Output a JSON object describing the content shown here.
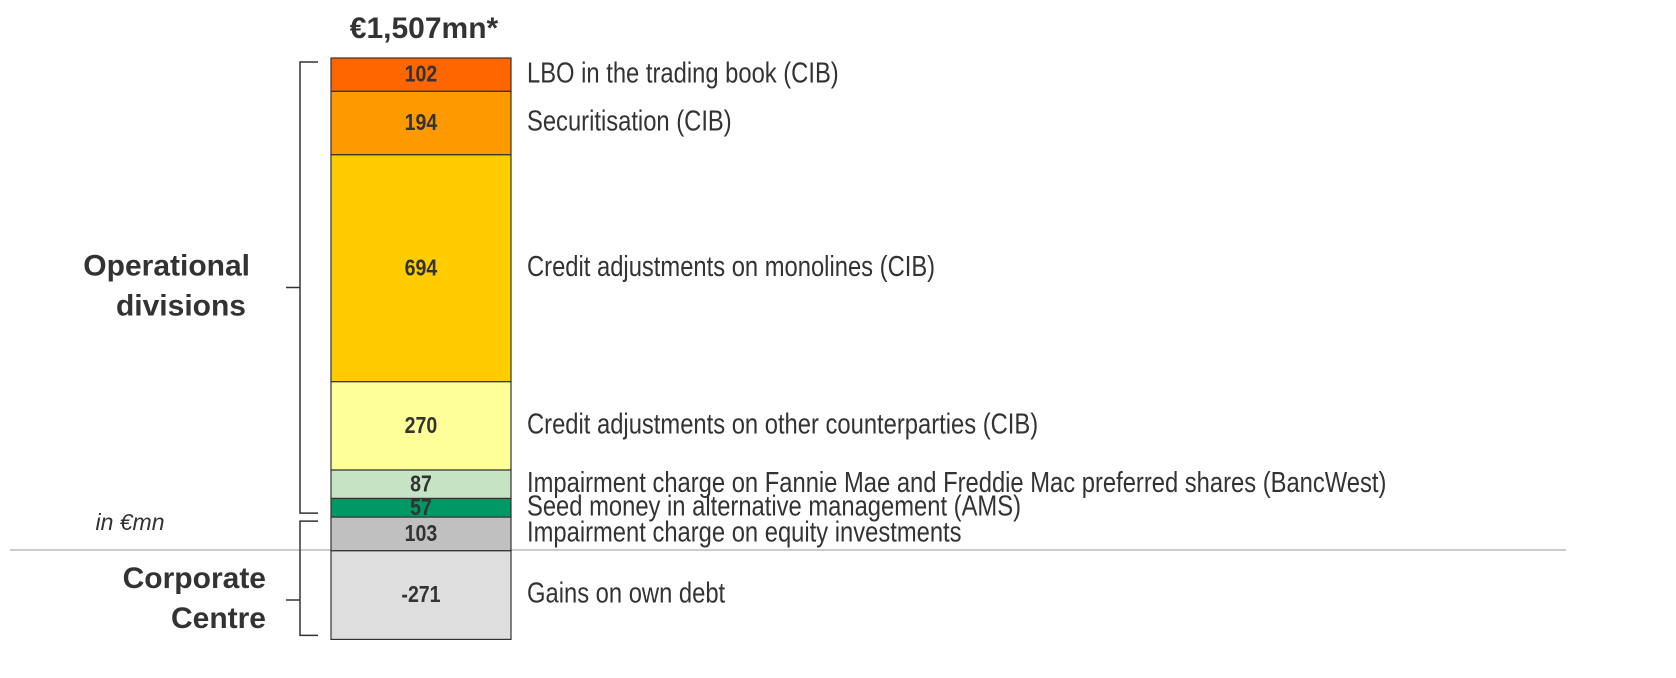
{
  "chart_data": {
    "type": "stacked_bar",
    "title": "€1,507mn*",
    "unit_note": "in €mn",
    "groups": [
      {
        "name": [
          "Operational",
          "divisions"
        ],
        "categories": [
          "LBO in the trading book (CIB)",
          "Securitisation (CIB)",
          "Credit adjustments on monolines (CIB)",
          "Credit adjustments on other counterparties (CIB)",
          "Impairment charge on Fannie Mae and Freddie Mac preferred shares (BancWest)",
          "Seed money in alternative management (AMS)"
        ],
        "values": [
          102,
          194,
          694,
          270,
          87,
          57
        ],
        "colors": [
          "#ff6600",
          "#ff9900",
          "#ffcc00",
          "#ffff99",
          "#c4e4c4",
          "#009966"
        ]
      },
      {
        "name": [
          "Corporate",
          "Centre"
        ],
        "categories": [
          "Impairment charge on equity investments",
          "Gains on own debt"
        ],
        "values": [
          103,
          -271
        ],
        "colors": [
          "#c0c0c0",
          "#dedede"
        ]
      }
    ]
  }
}
